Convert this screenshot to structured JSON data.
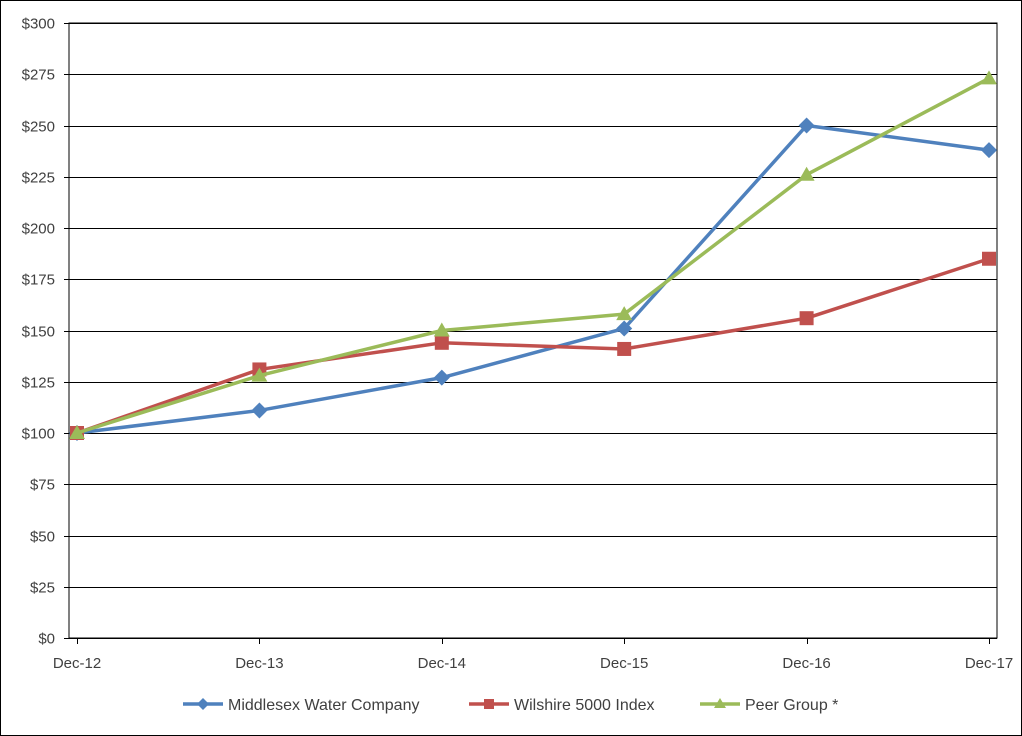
{
  "chart_data": {
    "type": "line",
    "categories": [
      "Dec-12",
      "Dec-13",
      "Dec-14",
      "Dec-15",
      "Dec-16",
      "Dec-17"
    ],
    "ylim": [
      0,
      300
    ],
    "y_ticks": [
      0,
      25,
      50,
      75,
      100,
      125,
      150,
      175,
      200,
      225,
      250,
      275,
      300
    ],
    "y_tick_labels": [
      "$0",
      "$25",
      "$50",
      "$75",
      "$100",
      "$125",
      "$150",
      "$175",
      "$200",
      "$225",
      "$250",
      "$275",
      "$300"
    ],
    "grid": true,
    "legend_position": "bottom",
    "series": [
      {
        "name": "Middlesex Water Company",
        "values": [
          100,
          111,
          127,
          151,
          250,
          238
        ],
        "color": "#4F81BD",
        "marker": "diamond"
      },
      {
        "name": "Wilshire 5000 Index",
        "values": [
          100,
          131,
          144,
          141,
          156,
          185
        ],
        "color": "#C0504D",
        "marker": "square"
      },
      {
        "name": "Peer Group *",
        "values": [
          100,
          128,
          150,
          158,
          226,
          273
        ],
        "color": "#9BBB59",
        "marker": "triangle"
      }
    ]
  }
}
